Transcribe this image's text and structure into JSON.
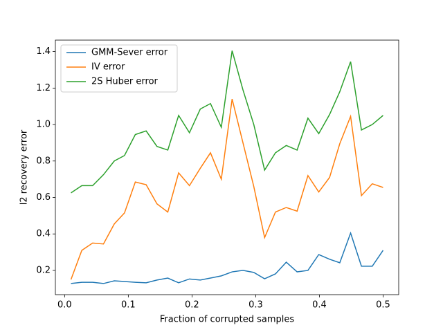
{
  "chart_data": {
    "type": "line",
    "xlabel": "Fraction of corrupted samples",
    "ylabel": "l2 recovery error",
    "x": [
      0.01,
      0.027,
      0.044,
      0.061,
      0.078,
      0.094,
      0.111,
      0.128,
      0.145,
      0.162,
      0.179,
      0.196,
      0.213,
      0.229,
      0.246,
      0.263,
      0.28,
      0.297,
      0.314,
      0.331,
      0.348,
      0.365,
      0.382,
      0.399,
      0.416,
      0.432,
      0.449,
      0.466,
      0.483,
      0.5
    ],
    "series": [
      {
        "name": "GMM-Sever error",
        "color": "#1f77b4",
        "values": [
          0.128,
          0.135,
          0.135,
          0.128,
          0.143,
          0.139,
          0.135,
          0.132,
          0.147,
          0.158,
          0.132,
          0.153,
          0.147,
          0.158,
          0.17,
          0.192,
          0.2,
          0.189,
          0.154,
          0.181,
          0.245,
          0.192,
          0.2,
          0.287,
          0.261,
          0.242,
          0.405,
          0.223,
          0.223,
          0.31
        ]
      },
      {
        "name": "IV error",
        "color": "#ff7f0e",
        "values": [
          0.15,
          0.31,
          0.35,
          0.345,
          0.455,
          0.515,
          0.685,
          0.67,
          0.565,
          0.52,
          0.735,
          0.665,
          0.76,
          0.845,
          0.7,
          1.14,
          0.9,
          0.66,
          0.38,
          0.52,
          0.545,
          0.525,
          0.72,
          0.63,
          0.71,
          0.895,
          1.045,
          0.61,
          0.675,
          0.655
        ]
      },
      {
        "name": "2S Huber error",
        "color": "#2ca02c",
        "values": [
          0.625,
          0.665,
          0.665,
          0.725,
          0.8,
          0.83,
          0.945,
          0.965,
          0.88,
          0.86,
          1.05,
          0.955,
          1.085,
          1.115,
          0.985,
          1.405,
          1.19,
          1.0,
          0.75,
          0.845,
          0.885,
          0.86,
          1.035,
          0.95,
          1.055,
          1.18,
          1.345,
          0.97,
          1.0,
          1.05
        ]
      }
    ],
    "xlim": [
      -0.0145,
      0.5245
    ],
    "xticks": [
      {
        "value": 0,
        "label": "0.0"
      },
      0.1,
      0.2,
      0.3,
      0.4,
      0.5
    ],
    "ylim": [
      0.067,
      1.463
    ],
    "yticks": [
      0.2,
      0.4,
      0.6,
      0.8,
      {
        "value": 1,
        "label": "1.0"
      },
      1.2,
      1.4
    ],
    "legend": "upper-left"
  }
}
